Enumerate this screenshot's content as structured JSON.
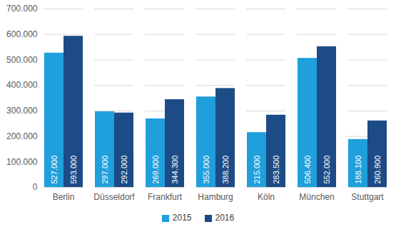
{
  "chart_data": {
    "type": "bar",
    "categories": [
      "Berlin",
      "Düsseldorf",
      "Frankfurt",
      "Hamburg",
      "Köln",
      "München",
      "Stuttgart"
    ],
    "series": [
      {
        "name": "2015",
        "color": "#1f9fdb",
        "values": [
          527000,
          297000,
          269000,
          355000,
          215000,
          506400,
          188100
        ],
        "value_labels": [
          "527.000",
          "297.000",
          "269.000",
          "355.000",
          "215.000",
          "506.400",
          "188.100"
        ]
      },
      {
        "name": "2016",
        "color": "#1c4b86",
        "values": [
          593000,
          292000,
          344300,
          388200,
          283500,
          552000,
          260900
        ],
        "value_labels": [
          "593.000",
          "292.000",
          "344.300",
          "388.200",
          "283.500",
          "552.000",
          "260.900"
        ]
      }
    ],
    "ylim": [
      0,
      700000
    ],
    "yticks": [
      0,
      {
        "value": 100000,
        "label": "100.000"
      },
      {
        "value": 200000,
        "label": "200.000"
      },
      {
        "value": 300000,
        "label": "300.000"
      },
      {
        "value": 400000,
        "label": "400.000"
      },
      {
        "value": 500000,
        "label": "500.000"
      },
      {
        "value": 600000,
        "label": "600.000"
      },
      {
        "value": 700000,
        "label": "700.000"
      }
    ],
    "grid": true,
    "data_labels": true,
    "legend": "bottom"
  }
}
